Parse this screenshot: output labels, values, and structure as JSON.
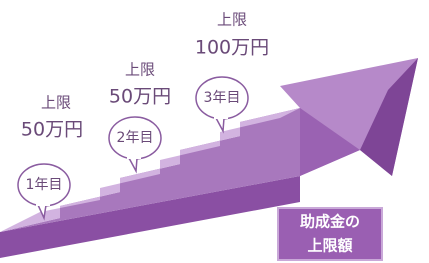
{
  "steps": [
    {
      "label": "上限",
      "amount": "50万円",
      "year": "1年目"
    },
    {
      "label": "上限",
      "amount": "50万円",
      "year": "2年目"
    },
    {
      "label": "上限",
      "amount": "100万円",
      "year": "3年目"
    }
  ],
  "box": {
    "lines": [
      "助成金の",
      "上限額"
    ]
  }
}
